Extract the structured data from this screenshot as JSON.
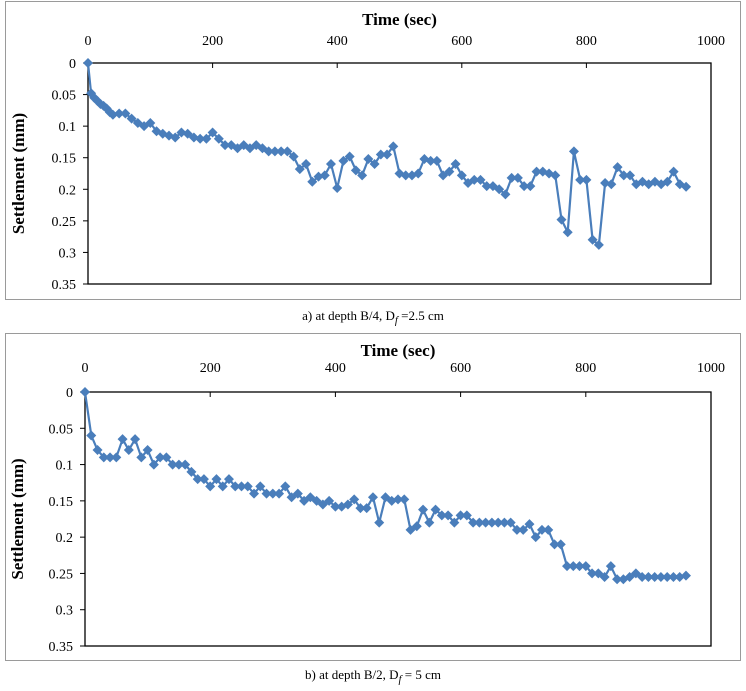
{
  "chart_data": [
    {
      "type": "line",
      "xlabel": "Time (sec)",
      "ylabel": "Settlement (mm)",
      "xlim": [
        0,
        1000
      ],
      "ylim": [
        0,
        0.35
      ],
      "y_inverted": true,
      "x_axis_position": "top",
      "x_ticks": [
        "0",
        "200",
        "400",
        "600",
        "800",
        "1000"
      ],
      "y_ticks": [
        "0",
        "0.05",
        "0.1",
        "0.15",
        "0.2",
        "0.25",
        "0.3",
        "0.35"
      ],
      "caption": {
        "prefix": "a) at depth B/4, D",
        "sub": "f",
        "suffix": " =2.5 cm"
      },
      "color": "#4a7ebb",
      "marker": "diamond",
      "grid": false,
      "series": [
        {
          "x": [
            0,
            5,
            10,
            15,
            20,
            25,
            30,
            35,
            40,
            50,
            60,
            70,
            80,
            90,
            100,
            110,
            120,
            130,
            140,
            150,
            160,
            170,
            180,
            190,
            200,
            210,
            220,
            230,
            240,
            250,
            260,
            270,
            280,
            290,
            300,
            310,
            320,
            330,
            340,
            350,
            360,
            370,
            380,
            390,
            400,
            410,
            420,
            430,
            440,
            450,
            460,
            470,
            480,
            490,
            500,
            510,
            520,
            530,
            540,
            550,
            560,
            570,
            580,
            590,
            600,
            610,
            620,
            630,
            640,
            650,
            660,
            670,
            680,
            690,
            700,
            710,
            720,
            730,
            740,
            750,
            760,
            770,
            780,
            790,
            800,
            810,
            820,
            830,
            840,
            850,
            860,
            870,
            880,
            890,
            900,
            910,
            920,
            930,
            940,
            950,
            960
          ],
          "y": [
            0,
            0.048,
            0.055,
            0.06,
            0.065,
            0.068,
            0.072,
            0.078,
            0.082,
            0.08,
            0.08,
            0.088,
            0.095,
            0.1,
            0.095,
            0.108,
            0.112,
            0.115,
            0.118,
            0.11,
            0.112,
            0.118,
            0.12,
            0.12,
            0.11,
            0.12,
            0.13,
            0.13,
            0.135,
            0.13,
            0.135,
            0.13,
            0.135,
            0.14,
            0.14,
            0.14,
            0.14,
            0.148,
            0.168,
            0.16,
            0.188,
            0.18,
            0.178,
            0.16,
            0.198,
            0.155,
            0.148,
            0.17,
            0.178,
            0.152,
            0.16,
            0.145,
            0.145,
            0.132,
            0.175,
            0.178,
            0.178,
            0.175,
            0.152,
            0.155,
            0.155,
            0.178,
            0.172,
            0.16,
            0.178,
            0.19,
            0.185,
            0.185,
            0.195,
            0.195,
            0.2,
            0.208,
            0.182,
            0.182,
            0.195,
            0.195,
            0.172,
            0.172,
            0.175,
            0.178,
            0.248,
            0.268,
            0.14,
            0.185,
            0.185,
            0.28,
            0.288,
            0.19,
            0.192,
            0.165,
            0.178,
            0.178,
            0.192,
            0.188,
            0.192,
            0.188,
            0.192,
            0.188,
            0.172,
            0.192,
            0.196
          ]
        }
      ]
    },
    {
      "type": "line",
      "xlabel": "Time (sec)",
      "ylabel": "Settlement (mm)",
      "xlim": [
        0,
        1000
      ],
      "ylim": [
        0,
        0.35
      ],
      "y_inverted": true,
      "x_axis_position": "top",
      "x_ticks": [
        "0",
        "200",
        "400",
        "600",
        "800",
        "1000"
      ],
      "y_ticks": [
        "0",
        "0.05",
        "0.1",
        "0.15",
        "0.2",
        "0.25",
        "0.3",
        "0.35"
      ],
      "caption": {
        "prefix": "b) at depth B/2, D",
        "sub": "f",
        "suffix": " = 5 cm"
      },
      "color": "#4a7ebb",
      "marker": "diamond",
      "grid": false,
      "series": [
        {
          "x": [
            0,
            10,
            20,
            30,
            40,
            50,
            60,
            70,
            80,
            90,
            100,
            110,
            120,
            130,
            140,
            150,
            160,
            170,
            180,
            190,
            200,
            210,
            220,
            230,
            240,
            250,
            260,
            270,
            280,
            290,
            300,
            310,
            320,
            330,
            340,
            350,
            360,
            370,
            380,
            390,
            400,
            410,
            420,
            430,
            440,
            450,
            460,
            470,
            480,
            490,
            500,
            510,
            520,
            530,
            540,
            550,
            560,
            570,
            580,
            590,
            600,
            610,
            620,
            630,
            640,
            650,
            660,
            670,
            680,
            690,
            700,
            710,
            720,
            730,
            740,
            750,
            760,
            770,
            780,
            790,
            800,
            810,
            820,
            830,
            840,
            850,
            860,
            870,
            880,
            890,
            900,
            910,
            920,
            930,
            940,
            950,
            960
          ],
          "y": [
            0,
            0.06,
            0.08,
            0.09,
            0.09,
            0.09,
            0.065,
            0.08,
            0.065,
            0.09,
            0.08,
            0.1,
            0.09,
            0.09,
            0.1,
            0.1,
            0.1,
            0.11,
            0.12,
            0.12,
            0.13,
            0.12,
            0.13,
            0.12,
            0.13,
            0.13,
            0.13,
            0.14,
            0.13,
            0.14,
            0.14,
            0.14,
            0.13,
            0.145,
            0.14,
            0.15,
            0.145,
            0.15,
            0.155,
            0.15,
            0.158,
            0.158,
            0.155,
            0.148,
            0.16,
            0.16,
            0.145,
            0.18,
            0.145,
            0.15,
            0.148,
            0.148,
            0.19,
            0.185,
            0.162,
            0.18,
            0.162,
            0.17,
            0.17,
            0.18,
            0.17,
            0.17,
            0.18,
            0.18,
            0.18,
            0.18,
            0.18,
            0.18,
            0.18,
            0.19,
            0.19,
            0.182,
            0.2,
            0.19,
            0.19,
            0.21,
            0.21,
            0.24,
            0.24,
            0.24,
            0.24,
            0.25,
            0.25,
            0.255,
            0.24,
            0.258,
            0.258,
            0.255,
            0.25,
            0.255,
            0.255,
            0.255,
            0.255,
            0.255,
            0.255,
            0.255,
            0.253
          ]
        }
      ]
    }
  ]
}
